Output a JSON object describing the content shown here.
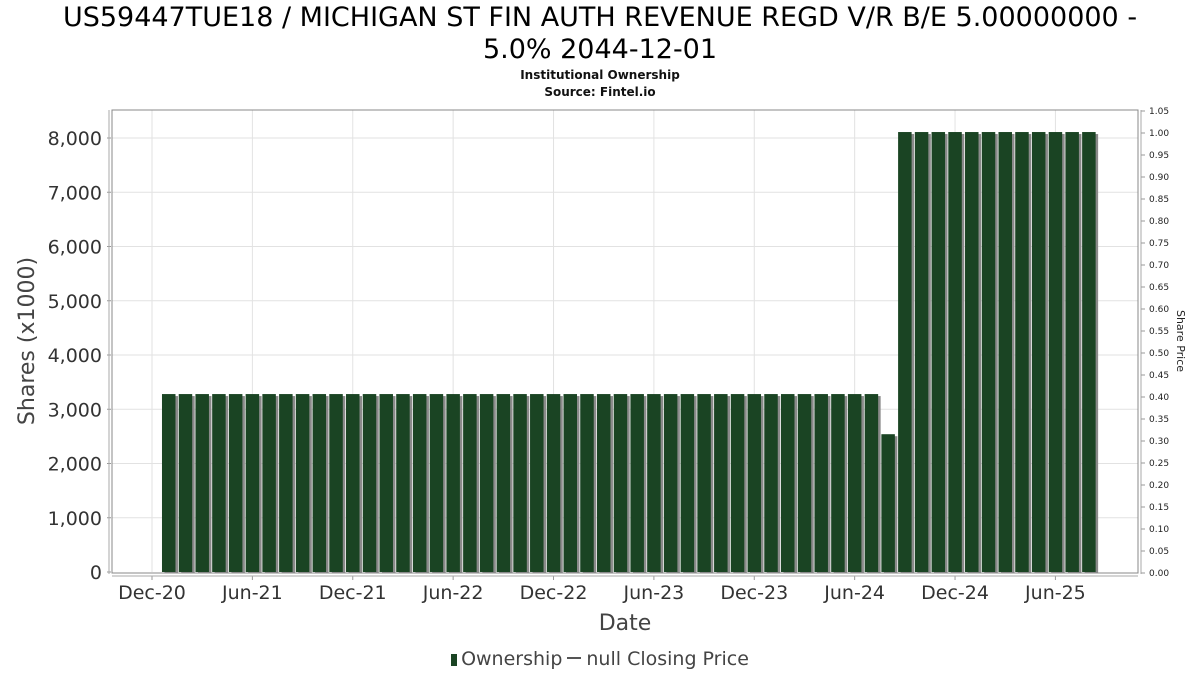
{
  "chart_data": {
    "type": "bar",
    "title_line1": "US59447TUE18 / MICHIGAN ST FIN AUTH REVENUE REGD V/R B/E 5.00000000 -",
    "title_line2": "5.0% 2044-12-01",
    "subtitle1": "Institutional Ownership",
    "subtitle2": "Source: Fintel.io",
    "xlabel": "Date",
    "ylabel": "Shares (x1000)",
    "y2label": "Share Price",
    "ylim": [
      0,
      8500
    ],
    "y2lim": [
      0,
      1.05
    ],
    "grid": true,
    "yticks": [
      "0",
      "1,000",
      "2,000",
      "3,000",
      "4,000",
      "5,000",
      "6,000",
      "7,000",
      "8,000"
    ],
    "ytick_values": [
      0,
      1000,
      2000,
      3000,
      4000,
      5000,
      6000,
      7000,
      8000
    ],
    "y2ticks": [
      "0.00",
      "0.05",
      "0.10",
      "0.15",
      "0.20",
      "0.25",
      "0.30",
      "0.35",
      "0.40",
      "0.45",
      "0.50",
      "0.55",
      "0.60",
      "0.65",
      "0.70",
      "0.75",
      "0.80",
      "0.85",
      "0.90",
      "0.95",
      "1.00",
      "1.05"
    ],
    "xticks": [
      "Dec-20",
      "Jun-21",
      "Dec-21",
      "Jun-22",
      "Dec-22",
      "Jun-23",
      "Dec-23",
      "Jun-24",
      "Dec-24",
      "Jun-25"
    ],
    "xtick_month_index": [
      0,
      6,
      12,
      18,
      24,
      30,
      36,
      42,
      48,
      54
    ],
    "series": [
      {
        "name": "Ownership",
        "color": "#1a4423",
        "start_month": "Jan-21",
        "values": [
          3280,
          3280,
          3280,
          3280,
          3280,
          3280,
          3280,
          3280,
          3280,
          3280,
          3280,
          3280,
          3280,
          3280,
          3280,
          3280,
          3280,
          3280,
          3280,
          3280,
          3280,
          3280,
          3280,
          3280,
          3280,
          3280,
          3280,
          3280,
          3280,
          3280,
          3280,
          3280,
          3280,
          3280,
          3280,
          3280,
          3280,
          3280,
          3280,
          3280,
          3280,
          3280,
          3280,
          2540,
          8110,
          8110,
          8110,
          8110,
          8110,
          8110,
          8110,
          8110,
          8110,
          8110,
          8110,
          8110
        ]
      },
      {
        "name": "null Closing Price",
        "color": "#555555",
        "values": []
      }
    ],
    "legend_position": "bottom",
    "legend": {
      "ownership": "Ownership",
      "price": "null Closing Price"
    }
  }
}
